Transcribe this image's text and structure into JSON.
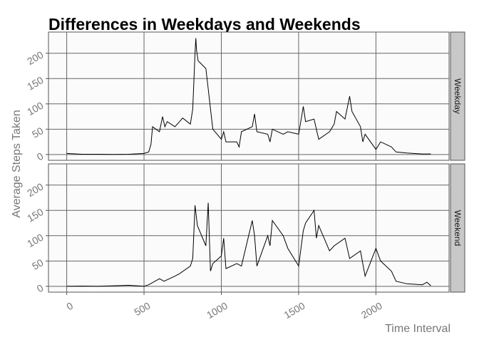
{
  "chart_data": {
    "type": "line",
    "title": "Differences in Weekdays and Weekends",
    "xlabel": "Time Interval",
    "ylabel": "Average Steps Taken",
    "xlim": [
      -118,
      2473
    ],
    "xticks": [
      0,
      500,
      1000,
      1500,
      2000
    ],
    "ylim": [
      -11.5,
      241.9
    ],
    "yticks": [
      0,
      50,
      100,
      150,
      200
    ],
    "grid": true,
    "color": "#000000",
    "facets": [
      {
        "name": "Weekday",
        "x": [
          0,
          100,
          200,
          300,
          400,
          500,
          530,
          545,
          555,
          600,
          620,
          635,
          650,
          700,
          730,
          750,
          800,
          815,
          830,
          835,
          840,
          850,
          900,
          915,
          930,
          945,
          1000,
          1015,
          1030,
          1100,
          1115,
          1130,
          1200,
          1215,
          1230,
          1300,
          1315,
          1330,
          1400,
          1430,
          1500,
          1530,
          1545,
          1600,
          1630,
          1700,
          1730,
          1745,
          1800,
          1830,
          1845,
          1900,
          1915,
          1930,
          2000,
          2030,
          2100,
          2130,
          2200,
          2300,
          2355
        ],
        "values": [
          2,
          0.5,
          0.5,
          0,
          0.5,
          2,
          5,
          20,
          55,
          45,
          75,
          55,
          65,
          55,
          65,
          72,
          60,
          90,
          200,
          230,
          205,
          185,
          170,
          130,
          90,
          50,
          30,
          45,
          25,
          25,
          15,
          45,
          55,
          80,
          45,
          40,
          25,
          50,
          40,
          45,
          40,
          95,
          65,
          70,
          30,
          45,
          60,
          85,
          70,
          115,
          85,
          55,
          25,
          40,
          10,
          25,
          15,
          5,
          3,
          1,
          1
        ]
      },
      {
        "name": "Weekend",
        "x": [
          0,
          100,
          200,
          300,
          400,
          500,
          530,
          600,
          630,
          700,
          730,
          800,
          815,
          830,
          845,
          900,
          915,
          930,
          945,
          1000,
          1015,
          1030,
          1100,
          1130,
          1200,
          1215,
          1230,
          1300,
          1315,
          1330,
          1400,
          1430,
          1500,
          1530,
          1545,
          1600,
          1615,
          1630,
          1700,
          1730,
          1800,
          1830,
          1900,
          1930,
          2000,
          2030,
          2100,
          2130,
          2200,
          2300,
          2330,
          2355
        ],
        "values": [
          0.2,
          0.5,
          0,
          1,
          2,
          0,
          3,
          15,
          10,
          20,
          25,
          40,
          55,
          160,
          120,
          80,
          165,
          30,
          45,
          60,
          95,
          35,
          45,
          40,
          130,
          100,
          40,
          100,
          80,
          130,
          100,
          75,
          40,
          110,
          125,
          150,
          95,
          120,
          70,
          80,
          95,
          55,
          70,
          20,
          75,
          50,
          30,
          10,
          5,
          3,
          8,
          1
        ]
      }
    ]
  }
}
